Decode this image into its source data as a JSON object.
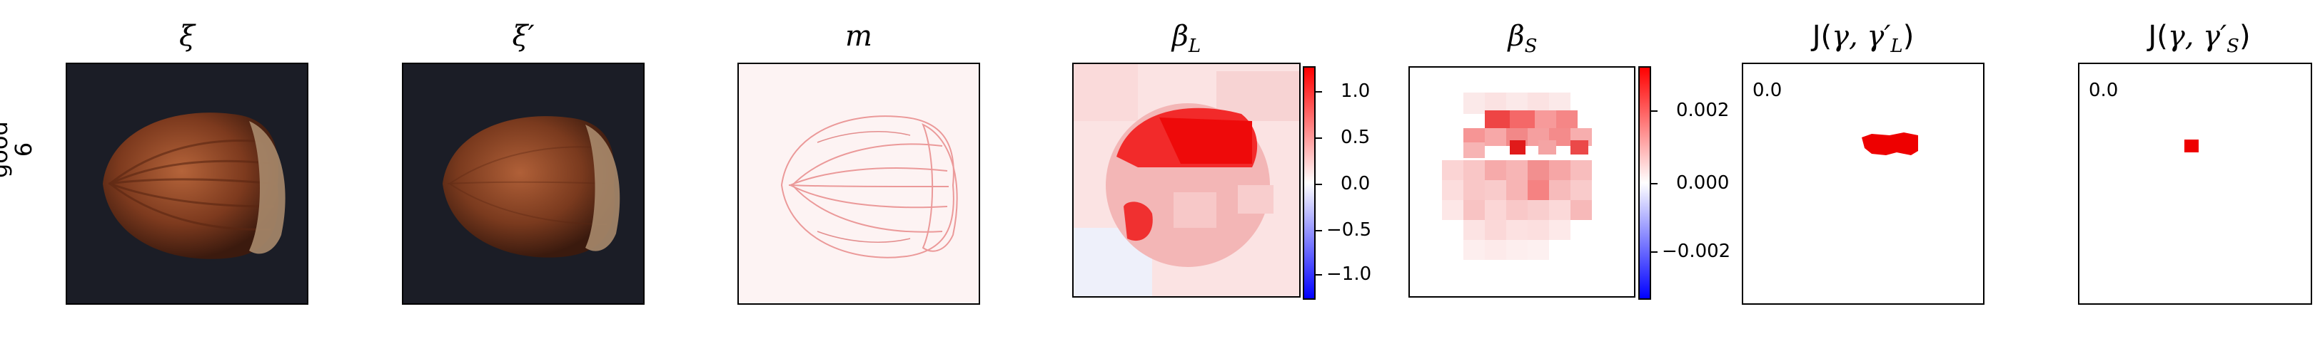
{
  "row_label": {
    "line1": "good",
    "line2": "6"
  },
  "panels": {
    "xi": {
      "title": "ξ"
    },
    "xi_prime": {
      "title": "ξ′"
    },
    "m": {
      "title": "m"
    },
    "beta_L": {
      "title_main": "β",
      "title_sub": "L",
      "colorbar_ticks": [
        "1.0",
        "0.5",
        "0.0",
        "−0.5",
        "−1.0"
      ]
    },
    "beta_S": {
      "title_main": "β",
      "title_sub": "S",
      "colorbar_ticks": [
        "0.002",
        "0.000",
        "−0.002"
      ]
    },
    "J_L": {
      "title_prefix": "J(",
      "title_gamma": "γ, γ′",
      "title_sub": "L",
      "title_suffix": ")",
      "corner_value": "0.0"
    },
    "J_S": {
      "title_prefix": "J(",
      "title_gamma": "γ, γ′",
      "title_sub": "S",
      "title_suffix": ")",
      "corner_value": "0.0"
    }
  },
  "colors": {
    "positive": "#ff0000",
    "negative": "#0000ff",
    "background_dark": "#1b1d26"
  }
}
